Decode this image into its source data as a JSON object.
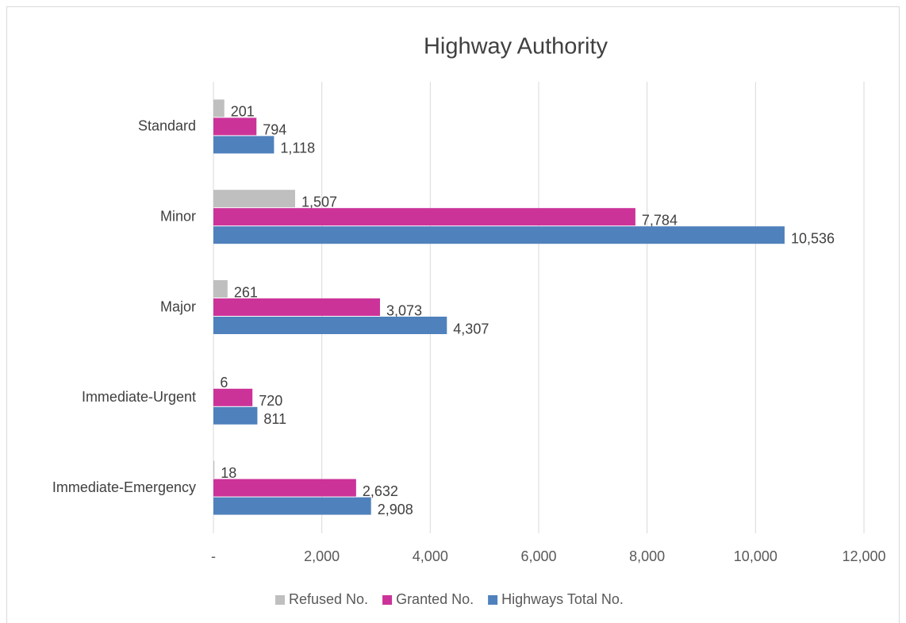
{
  "chart_data": {
    "type": "hbar",
    "title": "Highway Authority",
    "categories": [
      "Standard",
      "Minor",
      "Major",
      "Immediate-Urgent",
      "Immediate-Emergency"
    ],
    "series": [
      {
        "name": "Refused No.",
        "color": "#bfbfbf",
        "values": [
          201,
          1507,
          261,
          6,
          18
        ],
        "value_labels": [
          "201",
          "1,507",
          "261",
          "6",
          "18"
        ]
      },
      {
        "name": "Granted No.",
        "color": "#cc3399",
        "values": [
          794,
          7784,
          3073,
          720,
          2632
        ],
        "value_labels": [
          "794",
          "7,784",
          "3,073",
          "720",
          "2,632"
        ]
      },
      {
        "name": "Highways Total No.",
        "color": "#4f81bd",
        "values": [
          1118,
          10536,
          4307,
          811,
          2908
        ],
        "value_labels": [
          "1,118",
          "10,536",
          "4,307",
          "811",
          "2,908"
        ]
      }
    ],
    "xlim": [
      0,
      12000
    ],
    "xticks": [
      {
        "value": 0,
        "label": "-"
      },
      {
        "value": 2000,
        "label": "2,000"
      },
      {
        "value": 4000,
        "label": "4,000"
      },
      {
        "value": 6000,
        "label": "6,000"
      },
      {
        "value": 8000,
        "label": "8,000"
      },
      {
        "value": 10000,
        "label": "10,000"
      },
      {
        "value": 12000,
        "label": "12,000"
      }
    ],
    "grid": true,
    "legend": "bottom"
  }
}
